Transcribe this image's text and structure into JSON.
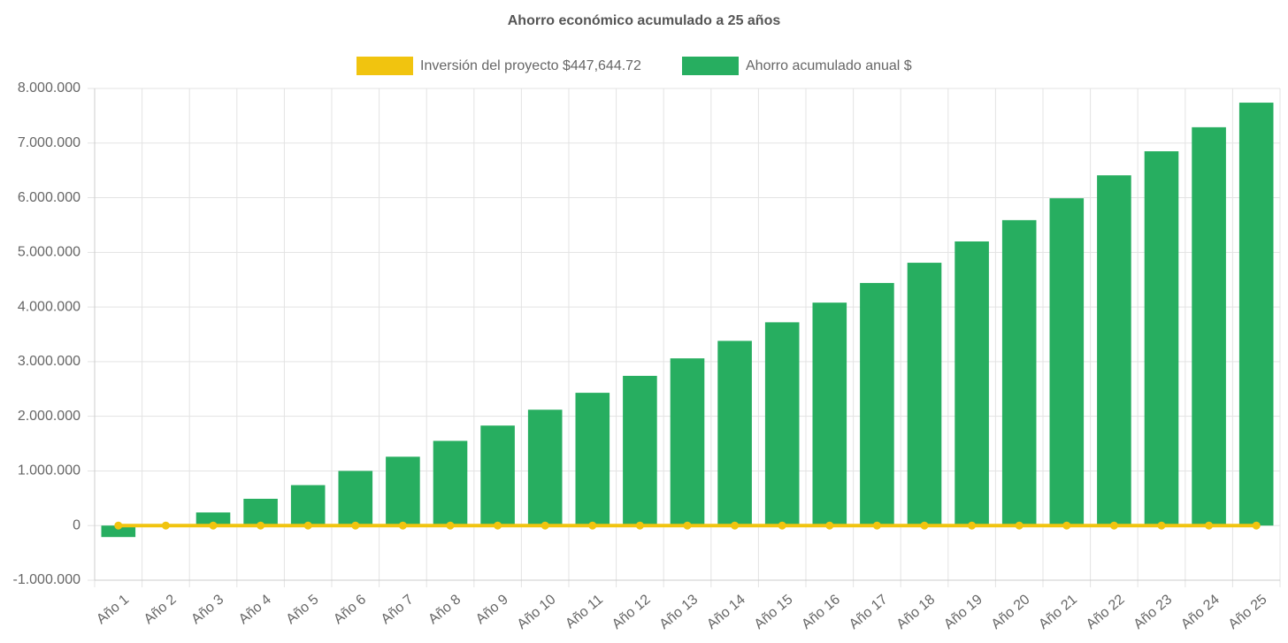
{
  "chart_data": {
    "type": "bar",
    "title": "Ahorro económico acumulado a 25 años",
    "categories": [
      "Año 1",
      "Año 2",
      "Año 3",
      "Año 4",
      "Año 5",
      "Año 6",
      "Año 7",
      "Año 8",
      "Año 9",
      "Año 10",
      "Año 11",
      "Año 12",
      "Año 13",
      "Año 14",
      "Año 15",
      "Año 16",
      "Año 17",
      "Año 18",
      "Año 19",
      "Año 20",
      "Año 21",
      "Año 22",
      "Año 23",
      "Año 24",
      "Año 25"
    ],
    "series": [
      {
        "name": "Inversión del proyecto $447,644.72",
        "type": "line",
        "color": "#f1c40f",
        "values": [
          0,
          0,
          0,
          0,
          0,
          0,
          0,
          0,
          0,
          0,
          0,
          0,
          0,
          0,
          0,
          0,
          0,
          0,
          0,
          0,
          0,
          0,
          0,
          0,
          0
        ]
      },
      {
        "name": "Ahorro acumulado anual $",
        "type": "bar",
        "color": "#27ae60",
        "values": [
          -210000,
          0,
          240000,
          490000,
          740000,
          1000000,
          1260000,
          1550000,
          1830000,
          2120000,
          2430000,
          2740000,
          3060000,
          3380000,
          3720000,
          4080000,
          4440000,
          4810000,
          5200000,
          5590000,
          5990000,
          6410000,
          6850000,
          7290000,
          7740000
        ]
      }
    ],
    "ylim": [
      -1000000,
      8000000
    ],
    "yticks": [
      {
        "value": -1000000,
        "label": "-1.000.000"
      },
      0,
      {
        "value": 1000000,
        "label": "1.000.000"
      },
      {
        "value": 2000000,
        "label": "2.000.000"
      },
      {
        "value": 3000000,
        "label": "3.000.000"
      },
      {
        "value": 4000000,
        "label": "4.000.000"
      },
      {
        "value": 5000000,
        "label": "5.000.000"
      },
      {
        "value": 6000000,
        "label": "6.000.000"
      },
      {
        "value": 7000000,
        "label": "7.000.000"
      },
      {
        "value": 8000000,
        "label": "8.000.000"
      }
    ],
    "grid": true
  }
}
